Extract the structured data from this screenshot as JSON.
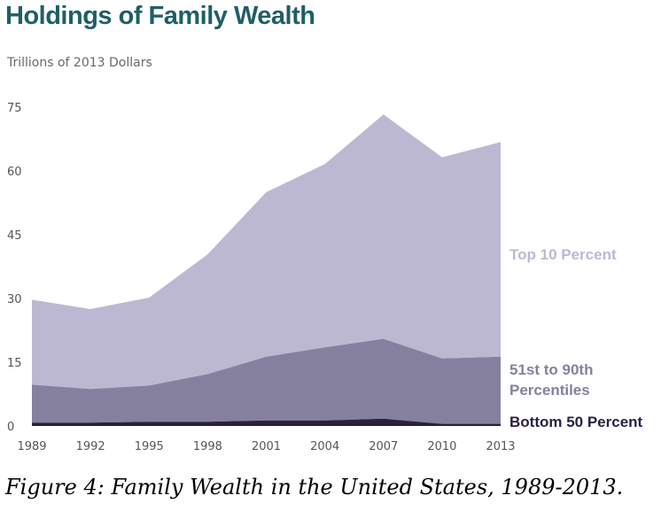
{
  "title": "Holdings of Family Wealth",
  "subtitle": "Trillions of 2013 Dollars",
  "caption": "Figure 4: Family Wealth in the United States, 1989-2013.",
  "chart_data": {
    "type": "area",
    "stacked": true,
    "title": "Holdings of Family Wealth",
    "subtitle": "Trillions of 2013 Dollars",
    "xlabel": "",
    "ylabel": "",
    "ylim": [
      0,
      75
    ],
    "yticks": [
      0,
      15,
      30,
      45,
      60,
      75
    ],
    "x": [
      "1989",
      "1992",
      "1995",
      "1998",
      "2001",
      "2004",
      "2007",
      "2010",
      "2013"
    ],
    "grid": false,
    "legend": "direct labels at right",
    "series": [
      {
        "name": "Bottom 50 Percent",
        "color": "#2b2042",
        "values": [
          0.8,
          0.8,
          1.0,
          1.0,
          1.3,
          1.3,
          1.7,
          0.5,
          0.5
        ]
      },
      {
        "name": "51st to 90th Percentiles",
        "color": "#86809f",
        "values": [
          8.9,
          7.9,
          8.5,
          11.2,
          15.0,
          17.2,
          18.8,
          15.4,
          15.8
        ]
      },
      {
        "name": "Top 10 Percent",
        "color": "#bcb8d2",
        "values": [
          20.0,
          18.8,
          20.7,
          28.2,
          38.7,
          43.1,
          52.8,
          47.3,
          50.5
        ]
      }
    ]
  }
}
